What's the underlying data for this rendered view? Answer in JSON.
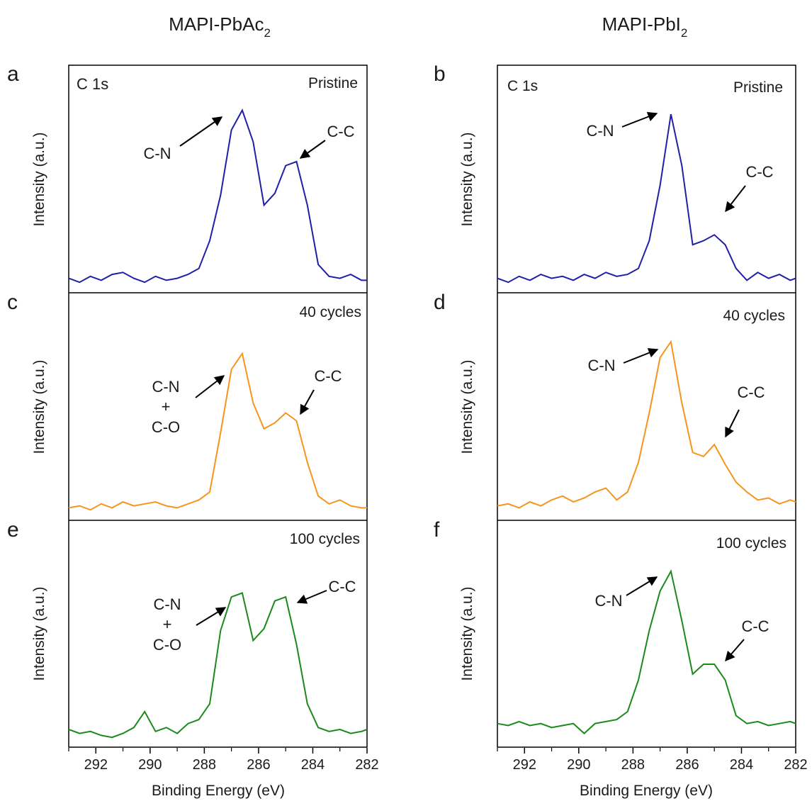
{
  "columns": [
    {
      "title": "MAPI-PbAc",
      "title_sub": "2"
    },
    {
      "title": "MAPI-PbI",
      "title_sub": "2"
    }
  ],
  "axis": {
    "xlabel": "Binding Energy (eV)",
    "ylabel": "Intensity (a.u.)",
    "xlim": [
      293,
      282
    ],
    "ticks": [
      292,
      290,
      288,
      286,
      284,
      282
    ],
    "tick_labels": [
      "292",
      "290",
      "288",
      "286",
      "284",
      "282"
    ]
  },
  "colors": {
    "pristine": "#1f1fa8",
    "c40": "#f7941d",
    "c100": "#1a8a1a",
    "arrow": "#000000"
  },
  "chart_data": [
    {
      "type": "line",
      "panel": "a",
      "column": 0,
      "row": 0,
      "element": "C 1s",
      "condition": "Pristine",
      "color": "#1f1fa8",
      "x": [
        293.0,
        292.6,
        292.2,
        291.8,
        291.4,
        291.0,
        290.6,
        290.2,
        289.8,
        289.4,
        289.0,
        288.6,
        288.2,
        287.8,
        287.4,
        287.0,
        286.6,
        286.2,
        285.8,
        285.4,
        285.0,
        284.6,
        284.2,
        283.8,
        283.4,
        283.0,
        282.6,
        282.2,
        282.0
      ],
      "y": [
        0.03,
        0.01,
        0.04,
        0.02,
        0.05,
        0.06,
        0.03,
        0.01,
        0.04,
        0.02,
        0.03,
        0.05,
        0.08,
        0.22,
        0.45,
        0.78,
        0.88,
        0.72,
        0.4,
        0.46,
        0.6,
        0.62,
        0.4,
        0.1,
        0.04,
        0.03,
        0.05,
        0.02,
        0.02
      ],
      "annotations": [
        "C-N",
        "C-C"
      ],
      "ylim": [
        0,
        1
      ]
    },
    {
      "type": "line",
      "panel": "b",
      "column": 1,
      "row": 0,
      "element": "C 1s",
      "condition": "Pristine",
      "color": "#1f1fa8",
      "x": [
        293.0,
        292.6,
        292.2,
        291.8,
        291.4,
        291.0,
        290.6,
        290.2,
        289.8,
        289.4,
        289.0,
        288.6,
        288.2,
        287.8,
        287.4,
        287.0,
        286.6,
        286.2,
        285.8,
        285.4,
        285.0,
        284.6,
        284.2,
        283.8,
        283.4,
        283.0,
        282.6,
        282.2,
        282.0
      ],
      "y": [
        0.03,
        0.01,
        0.04,
        0.02,
        0.05,
        0.03,
        0.04,
        0.02,
        0.05,
        0.03,
        0.06,
        0.04,
        0.05,
        0.08,
        0.22,
        0.5,
        0.86,
        0.6,
        0.2,
        0.22,
        0.25,
        0.2,
        0.08,
        0.02,
        0.06,
        0.03,
        0.05,
        0.02,
        0.03
      ],
      "annotations": [
        "C-N",
        "C-C"
      ],
      "ylim": [
        0,
        1
      ]
    },
    {
      "type": "line",
      "panel": "c",
      "column": 0,
      "row": 1,
      "condition": "40 cycles",
      "color": "#f7941d",
      "x": [
        293.0,
        292.6,
        292.2,
        291.8,
        291.4,
        291.0,
        290.6,
        290.2,
        289.8,
        289.4,
        289.0,
        288.6,
        288.2,
        287.8,
        287.4,
        287.0,
        286.6,
        286.2,
        285.8,
        285.4,
        285.0,
        284.6,
        284.2,
        283.8,
        283.4,
        283.0,
        282.6,
        282.2,
        282.0
      ],
      "y": [
        0.02,
        0.03,
        0.01,
        0.04,
        0.02,
        0.05,
        0.03,
        0.04,
        0.05,
        0.03,
        0.02,
        0.04,
        0.06,
        0.1,
        0.4,
        0.72,
        0.8,
        0.55,
        0.42,
        0.45,
        0.5,
        0.46,
        0.25,
        0.08,
        0.04,
        0.06,
        0.03,
        0.02,
        0.02
      ],
      "annotations": [
        "C-N",
        "+",
        "C-O",
        "C-C"
      ],
      "ylim": [
        0,
        1
      ]
    },
    {
      "type": "line",
      "panel": "d",
      "column": 1,
      "row": 1,
      "condition": "40 cycles",
      "color": "#f7941d",
      "x": [
        293.0,
        292.6,
        292.2,
        291.8,
        291.4,
        291.0,
        290.6,
        290.2,
        289.8,
        289.4,
        289.0,
        288.6,
        288.2,
        287.8,
        287.4,
        287.0,
        286.6,
        286.2,
        285.8,
        285.4,
        285.0,
        284.6,
        284.2,
        283.8,
        283.4,
        283.0,
        282.6,
        282.2,
        282.0
      ],
      "y": [
        0.03,
        0.04,
        0.02,
        0.05,
        0.03,
        0.06,
        0.08,
        0.05,
        0.07,
        0.1,
        0.12,
        0.06,
        0.1,
        0.25,
        0.5,
        0.78,
        0.86,
        0.55,
        0.3,
        0.28,
        0.34,
        0.24,
        0.15,
        0.1,
        0.06,
        0.07,
        0.04,
        0.06,
        0.05
      ],
      "annotations": [
        "C-N",
        "C-C"
      ],
      "ylim": [
        0,
        1
      ]
    },
    {
      "type": "line",
      "panel": "e",
      "column": 0,
      "row": 2,
      "condition": "100 cycles",
      "color": "#1a8a1a",
      "x": [
        293.0,
        292.6,
        292.2,
        291.8,
        291.4,
        291.0,
        290.6,
        290.2,
        289.8,
        289.4,
        289.0,
        288.6,
        288.2,
        287.8,
        287.4,
        287.0,
        286.6,
        286.2,
        285.8,
        285.4,
        285.0,
        284.6,
        284.2,
        283.8,
        283.4,
        283.0,
        282.6,
        282.2,
        282.0
      ],
      "y": [
        0.05,
        0.03,
        0.04,
        0.02,
        0.01,
        0.03,
        0.06,
        0.14,
        0.04,
        0.06,
        0.03,
        0.08,
        0.1,
        0.18,
        0.55,
        0.72,
        0.74,
        0.5,
        0.56,
        0.7,
        0.72,
        0.48,
        0.18,
        0.06,
        0.04,
        0.05,
        0.03,
        0.04,
        0.05
      ],
      "annotations": [
        "C-N",
        "+",
        "C-O",
        "C-C"
      ],
      "ylim": [
        0,
        1
      ]
    },
    {
      "type": "line",
      "panel": "f",
      "column": 1,
      "row": 2,
      "condition": "100 cycles",
      "color": "#1a8a1a",
      "x": [
        293.0,
        292.6,
        292.2,
        291.8,
        291.4,
        291.0,
        290.6,
        290.2,
        289.8,
        289.4,
        289.0,
        288.6,
        288.2,
        287.8,
        287.4,
        287.0,
        286.6,
        286.2,
        285.8,
        285.4,
        285.0,
        284.6,
        284.2,
        283.8,
        283.4,
        283.0,
        282.6,
        282.2,
        282.0
      ],
      "y": [
        0.08,
        0.07,
        0.09,
        0.07,
        0.08,
        0.06,
        0.07,
        0.08,
        0.03,
        0.08,
        0.09,
        0.1,
        0.14,
        0.3,
        0.55,
        0.75,
        0.85,
        0.6,
        0.33,
        0.38,
        0.38,
        0.3,
        0.12,
        0.08,
        0.09,
        0.07,
        0.08,
        0.09,
        0.08
      ],
      "annotations": [
        "C-N",
        "C-C"
      ],
      "ylim": [
        0,
        1
      ]
    }
  ]
}
